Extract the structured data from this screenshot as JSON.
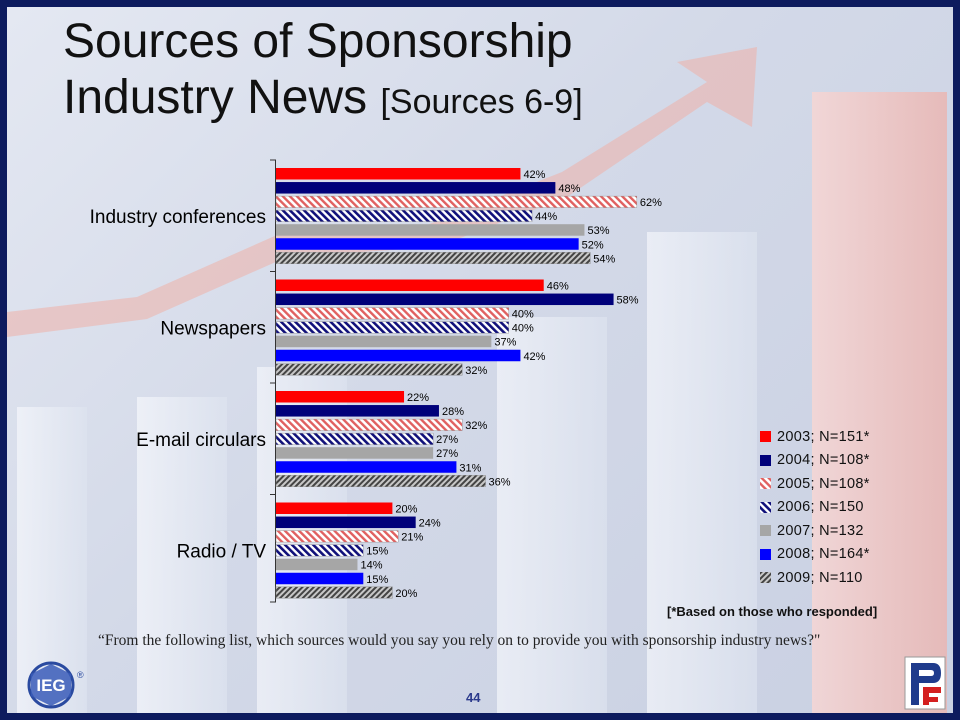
{
  "title": {
    "main_line1": "Sources of Sponsorship",
    "main_line2": "Industry News",
    "bracket": "[Sources 6-9]"
  },
  "chart_data": {
    "type": "bar",
    "orientation": "horizontal",
    "categories": [
      "Industry conferences",
      "Newspapers",
      "E-mail circulars",
      "Radio / TV"
    ],
    "series": [
      {
        "name": "2003; N=151*",
        "values": [
          42,
          46,
          22,
          20
        ],
        "color": "#ff0000",
        "pattern": "solid"
      },
      {
        "name": "2004; N=108*",
        "values": [
          48,
          58,
          28,
          24
        ],
        "color": "#00007a",
        "pattern": "solid"
      },
      {
        "name": "2005; N=108*",
        "values": [
          62,
          40,
          32,
          21
        ],
        "color": "#e06060",
        "pattern": "diag-light"
      },
      {
        "name": "2006; N=150",
        "values": [
          44,
          40,
          27,
          15
        ],
        "color": "#10107a",
        "pattern": "diag-dark"
      },
      {
        "name": "2007; N=132",
        "values": [
          53,
          37,
          27,
          14
        ],
        "color": "#a6a6a6",
        "pattern": "solid"
      },
      {
        "name": "2008; N=164*",
        "values": [
          52,
          42,
          31,
          15
        ],
        "color": "#0000ff",
        "pattern": "solid"
      },
      {
        "name": "2009; N=110",
        "values": [
          54,
          32,
          36,
          20
        ],
        "color": "#555555",
        "pattern": "hatch-gray"
      }
    ],
    "value_suffix": "%",
    "xlim": [
      0,
      100
    ],
    "legend_position": "right",
    "grid": false
  },
  "footnote": "[*Based on those who responded]",
  "question": "“From the following list, which sources would you say you rely on to provide you with sponsorship industry news?\"",
  "page_number": "44",
  "logos": {
    "left": "IEG",
    "left_mark": "®"
  },
  "colors": {
    "frame": "#0d1b5e",
    "page_number": "#2b3a8c"
  }
}
